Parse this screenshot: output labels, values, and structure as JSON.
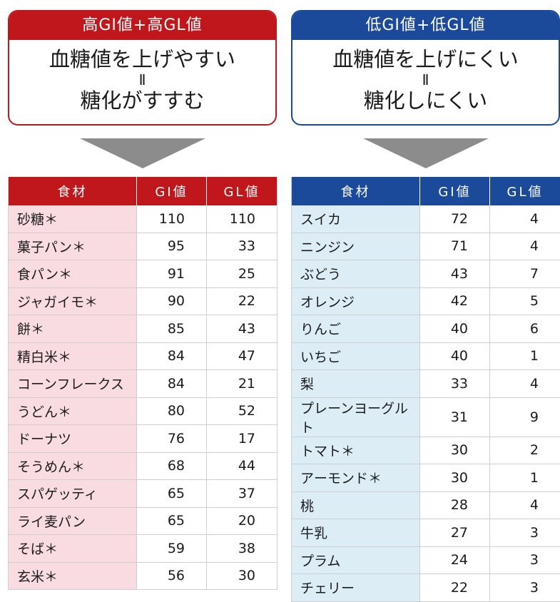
{
  "colors": {
    "high_accent": "#c0171d",
    "high_tint": "#f9dce2",
    "low_accent": "#1b4a9b",
    "low_tint": "#dcedf6",
    "arrow": "#8c8c8c"
  },
  "high": {
    "header": "高GI値+高GL値",
    "line1": "血糖値を上げやすい",
    "separator": "Ⅱ",
    "line2": "糖化がすすむ",
    "columns": [
      "食材",
      "GI値",
      "GL値"
    ],
    "rows": [
      [
        "砂糖＊",
        "110",
        "110"
      ],
      [
        "菓子パン＊",
        "95",
        "33"
      ],
      [
        "食パン＊",
        "91",
        "25"
      ],
      [
        "ジャガイモ＊",
        "90",
        "22"
      ],
      [
        "餅＊",
        "85",
        "43"
      ],
      [
        "精白米＊",
        "84",
        "47"
      ],
      [
        "コーンフレークス",
        "84",
        "21"
      ],
      [
        "うどん＊",
        "80",
        "52"
      ],
      [
        "ドーナツ",
        "76",
        "17"
      ],
      [
        "そうめん＊",
        "68",
        "44"
      ],
      [
        "スパゲッティ",
        "65",
        "37"
      ],
      [
        "ライ麦パン",
        "65",
        "20"
      ],
      [
        "そば＊",
        "59",
        "38"
      ],
      [
        "玄米＊",
        "56",
        "30"
      ]
    ]
  },
  "low": {
    "header": "低GI値+低GL値",
    "line1": "血糖値を上げにくい",
    "separator": "Ⅱ",
    "line2": "糖化しにくい",
    "columns": [
      "食材",
      "GI値",
      "GL値"
    ],
    "rows": [
      [
        "スイカ",
        "72",
        "4"
      ],
      [
        "ニンジン",
        "71",
        "4"
      ],
      [
        "ぶどう",
        "43",
        "7"
      ],
      [
        "オレンジ",
        "42",
        "5"
      ],
      [
        "りんご",
        "40",
        "6"
      ],
      [
        "いちご",
        "40",
        "1"
      ],
      [
        "梨",
        "33",
        "4"
      ],
      [
        "プレーンヨーグルト",
        "31",
        "9"
      ],
      [
        "トマト＊",
        "30",
        "2"
      ],
      [
        "アーモンド＊",
        "30",
        "1"
      ],
      [
        "桃",
        "28",
        "4"
      ],
      [
        "牛乳",
        "27",
        "3"
      ],
      [
        "プラム",
        "24",
        "3"
      ],
      [
        "チェリー",
        "22",
        "3"
      ]
    ]
  }
}
